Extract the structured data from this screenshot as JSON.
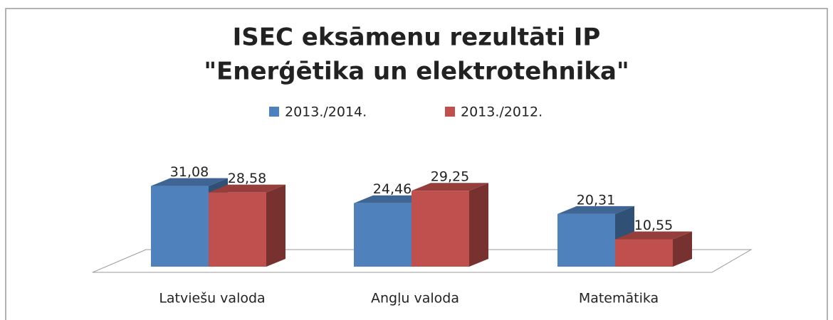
{
  "chart_data": {
    "type": "bar3d",
    "title": "ISEC eksāmenu rezultāti IP",
    "subtitle": "\"Enerģētika un elektrotehnika\"",
    "categories": [
      "Latviešu valoda",
      "Angļu valoda",
      "Matemātika"
    ],
    "series": [
      {
        "name": "2013./2014.",
        "color": "#4f81bd",
        "values": [
          31.08,
          24.46,
          20.31
        ],
        "value_labels": [
          "31,08",
          "24,46",
          "20,31"
        ]
      },
      {
        "name": "2013./2012.",
        "color": "#c0504d",
        "values": [
          28.58,
          29.25,
          10.55
        ],
        "value_labels": [
          "28,58",
          "29,25",
          "10,55"
        ]
      }
    ],
    "legend": "top"
  }
}
